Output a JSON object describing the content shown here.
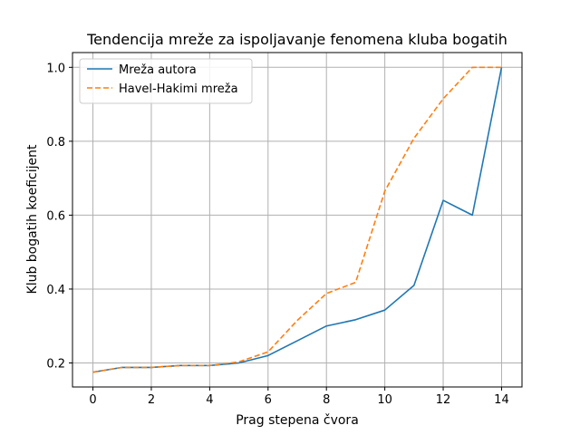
{
  "chart_data": {
    "type": "line",
    "title": "Tendencija mreže za ispoljavanje fenomena kluba bogatih",
    "xlabel": "Prag stepena čvora",
    "ylabel": "Klub bogatih koeficijent",
    "xlim": [
      -0.7,
      14.7
    ],
    "ylim": [
      0.135,
      1.04
    ],
    "xticks": [
      0,
      2,
      4,
      6,
      8,
      10,
      12,
      14
    ],
    "yticks": [
      0.2,
      0.4,
      0.6,
      0.8,
      1.0
    ],
    "ytick_labels": [
      "0.2",
      "0.4",
      "0.6",
      "0.8",
      "1.0"
    ],
    "grid": true,
    "legend_position": "top-left",
    "x": [
      0,
      1,
      2,
      3,
      4,
      5,
      6,
      7,
      8,
      9,
      10,
      11,
      12,
      13,
      14
    ],
    "series": [
      {
        "name": "Mreža autora",
        "color": "#1f77b4",
        "style": "solid",
        "values": [
          0.175,
          0.188,
          0.188,
          0.193,
          0.193,
          0.2,
          0.22,
          0.26,
          0.3,
          0.317,
          0.343,
          0.41,
          0.64,
          0.6,
          1.0
        ]
      },
      {
        "name": "Havel-Hakimi mreža",
        "color": "#ff7f0e",
        "style": "dashed",
        "values": [
          0.175,
          0.188,
          0.188,
          0.193,
          0.193,
          0.203,
          0.23,
          0.315,
          0.388,
          0.418,
          0.665,
          0.808,
          0.915,
          1.0,
          1.0
        ]
      }
    ]
  }
}
